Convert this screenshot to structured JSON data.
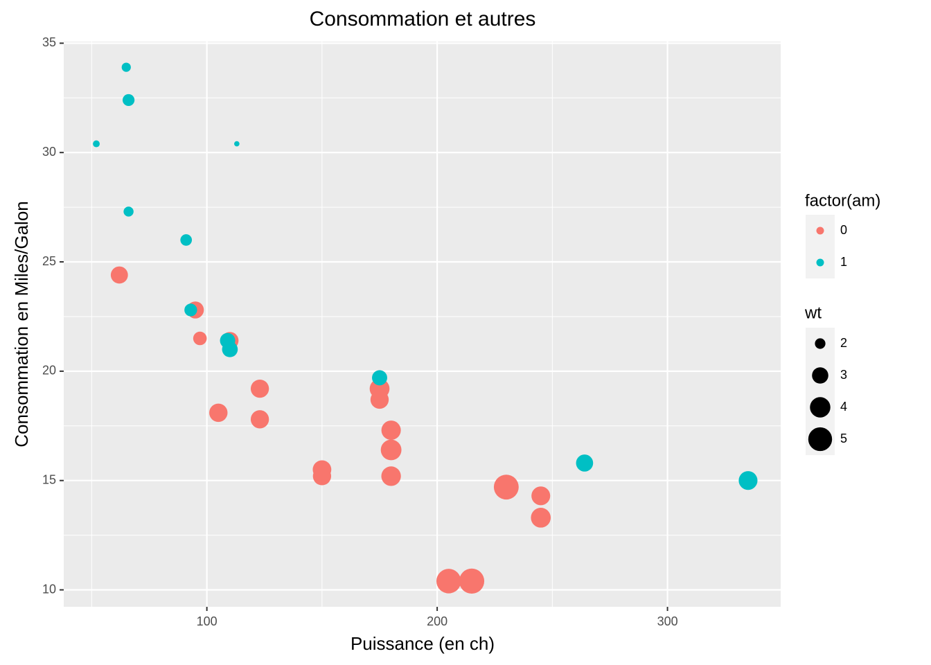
{
  "chart_data": {
    "type": "scatter",
    "title": "Consommation et autres",
    "x_label": "Puissance (en ch)",
    "y_label": "Consommation en Miles/Galon",
    "xlim": [
      37.85,
      349.15
    ],
    "ylim": [
      9.225,
      35.075
    ],
    "xticks": [
      100,
      200,
      300
    ],
    "yticks": [
      10,
      15,
      20,
      25,
      30,
      35
    ],
    "grid": true,
    "legend_position": "right",
    "color_legend_title": "factor(am)",
    "series": [
      {
        "name": "0",
        "color": "#F8766D",
        "x": [
          110,
          175,
          105,
          245,
          62,
          95,
          123,
          123,
          180,
          180,
          180,
          205,
          215,
          230,
          97,
          150,
          150,
          245,
          175
        ],
        "values": [
          21.4,
          18.7,
          18.1,
          14.3,
          24.4,
          22.8,
          19.2,
          17.8,
          16.4,
          17.3,
          15.2,
          10.4,
          10.4,
          14.7,
          21.5,
          15.5,
          15.2,
          13.3,
          19.2
        ],
        "sizes": [
          3.215,
          3.44,
          3.46,
          3.57,
          3.19,
          3.15,
          3.44,
          3.44,
          4.07,
          3.73,
          3.78,
          5.25,
          5.424,
          5.345,
          2.465,
          3.52,
          3.435,
          3.84,
          3.845
        ]
      },
      {
        "name": "1",
        "color": "#00BFC4",
        "x": [
          110,
          110,
          93,
          66,
          52,
          65,
          66,
          91,
          113,
          264,
          175,
          335,
          109
        ],
        "values": [
          21.0,
          21.0,
          22.8,
          32.4,
          30.4,
          33.9,
          27.3,
          26.0,
          30.4,
          15.8,
          19.7,
          15.0,
          21.4
        ],
        "sizes": [
          2.62,
          2.875,
          2.32,
          2.2,
          1.615,
          1.835,
          1.935,
          2.14,
          1.513,
          3.17,
          2.77,
          3.57,
          2.78
        ]
      }
    ],
    "size_legend": {
      "title": "wt",
      "values": [
        2,
        3,
        4,
        5
      ]
    }
  }
}
